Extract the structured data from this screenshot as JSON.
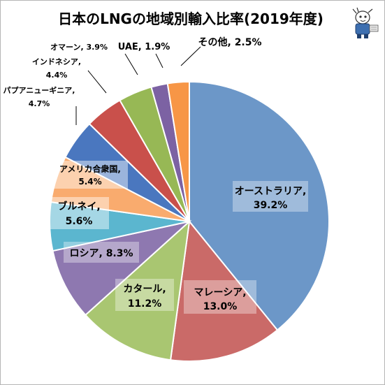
{
  "chart_data": {
    "type": "pie",
    "title": "日本のLNGの地域別輸入比率(2019年度)",
    "start_angle_deg": 0,
    "direction": "clockwise",
    "slices": [
      {
        "name": "オーストラリア",
        "value": 39.2,
        "label": "39.2%",
        "color": "#6c97c8"
      },
      {
        "name": "マレーシア",
        "value": 13.0,
        "label": "13.0%",
        "color": "#ca6a68"
      },
      {
        "name": "カタール",
        "value": 11.2,
        "label": "11.2%",
        "color": "#a9c671"
      },
      {
        "name": "ロシア",
        "value": 8.3,
        "label": "8.3%",
        "color": "#8e78b0"
      },
      {
        "name": "ブルネイ",
        "value": 5.6,
        "label": "5.6%",
        "color": "#5bb6cf"
      },
      {
        "name": "アメリカ合衆国",
        "value": 5.4,
        "label": "5.4%",
        "color": "#f9ab6e"
      },
      {
        "name": "パプアニューギニア",
        "value": 4.7,
        "label": "4.7%",
        "color": "#4a77bf"
      },
      {
        "name": "インドネシア",
        "value": 4.4,
        "label": "4.4%",
        "color": "#c9504b"
      },
      {
        "name": "オマーン",
        "value": 3.9,
        "label": "3.9%",
        "color": "#97b855"
      },
      {
        "name": "UAE",
        "value": 1.9,
        "label": "1.9%",
        "color": "#7c62a3"
      },
      {
        "name": "その他",
        "value": 2.5,
        "label": "2.5%",
        "color": "#f79646"
      }
    ]
  }
}
